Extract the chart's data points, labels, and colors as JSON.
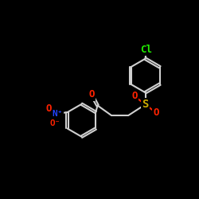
{
  "background": "#000000",
  "bond_color": "#d0d0d0",
  "atom_colors": {
    "O": "#ff2200",
    "S": "#ccaa00",
    "N": "#2244ff",
    "Cl": "#22ee00",
    "C": "#d0d0d0"
  },
  "bond_width": 1.5,
  "font_size": 9
}
